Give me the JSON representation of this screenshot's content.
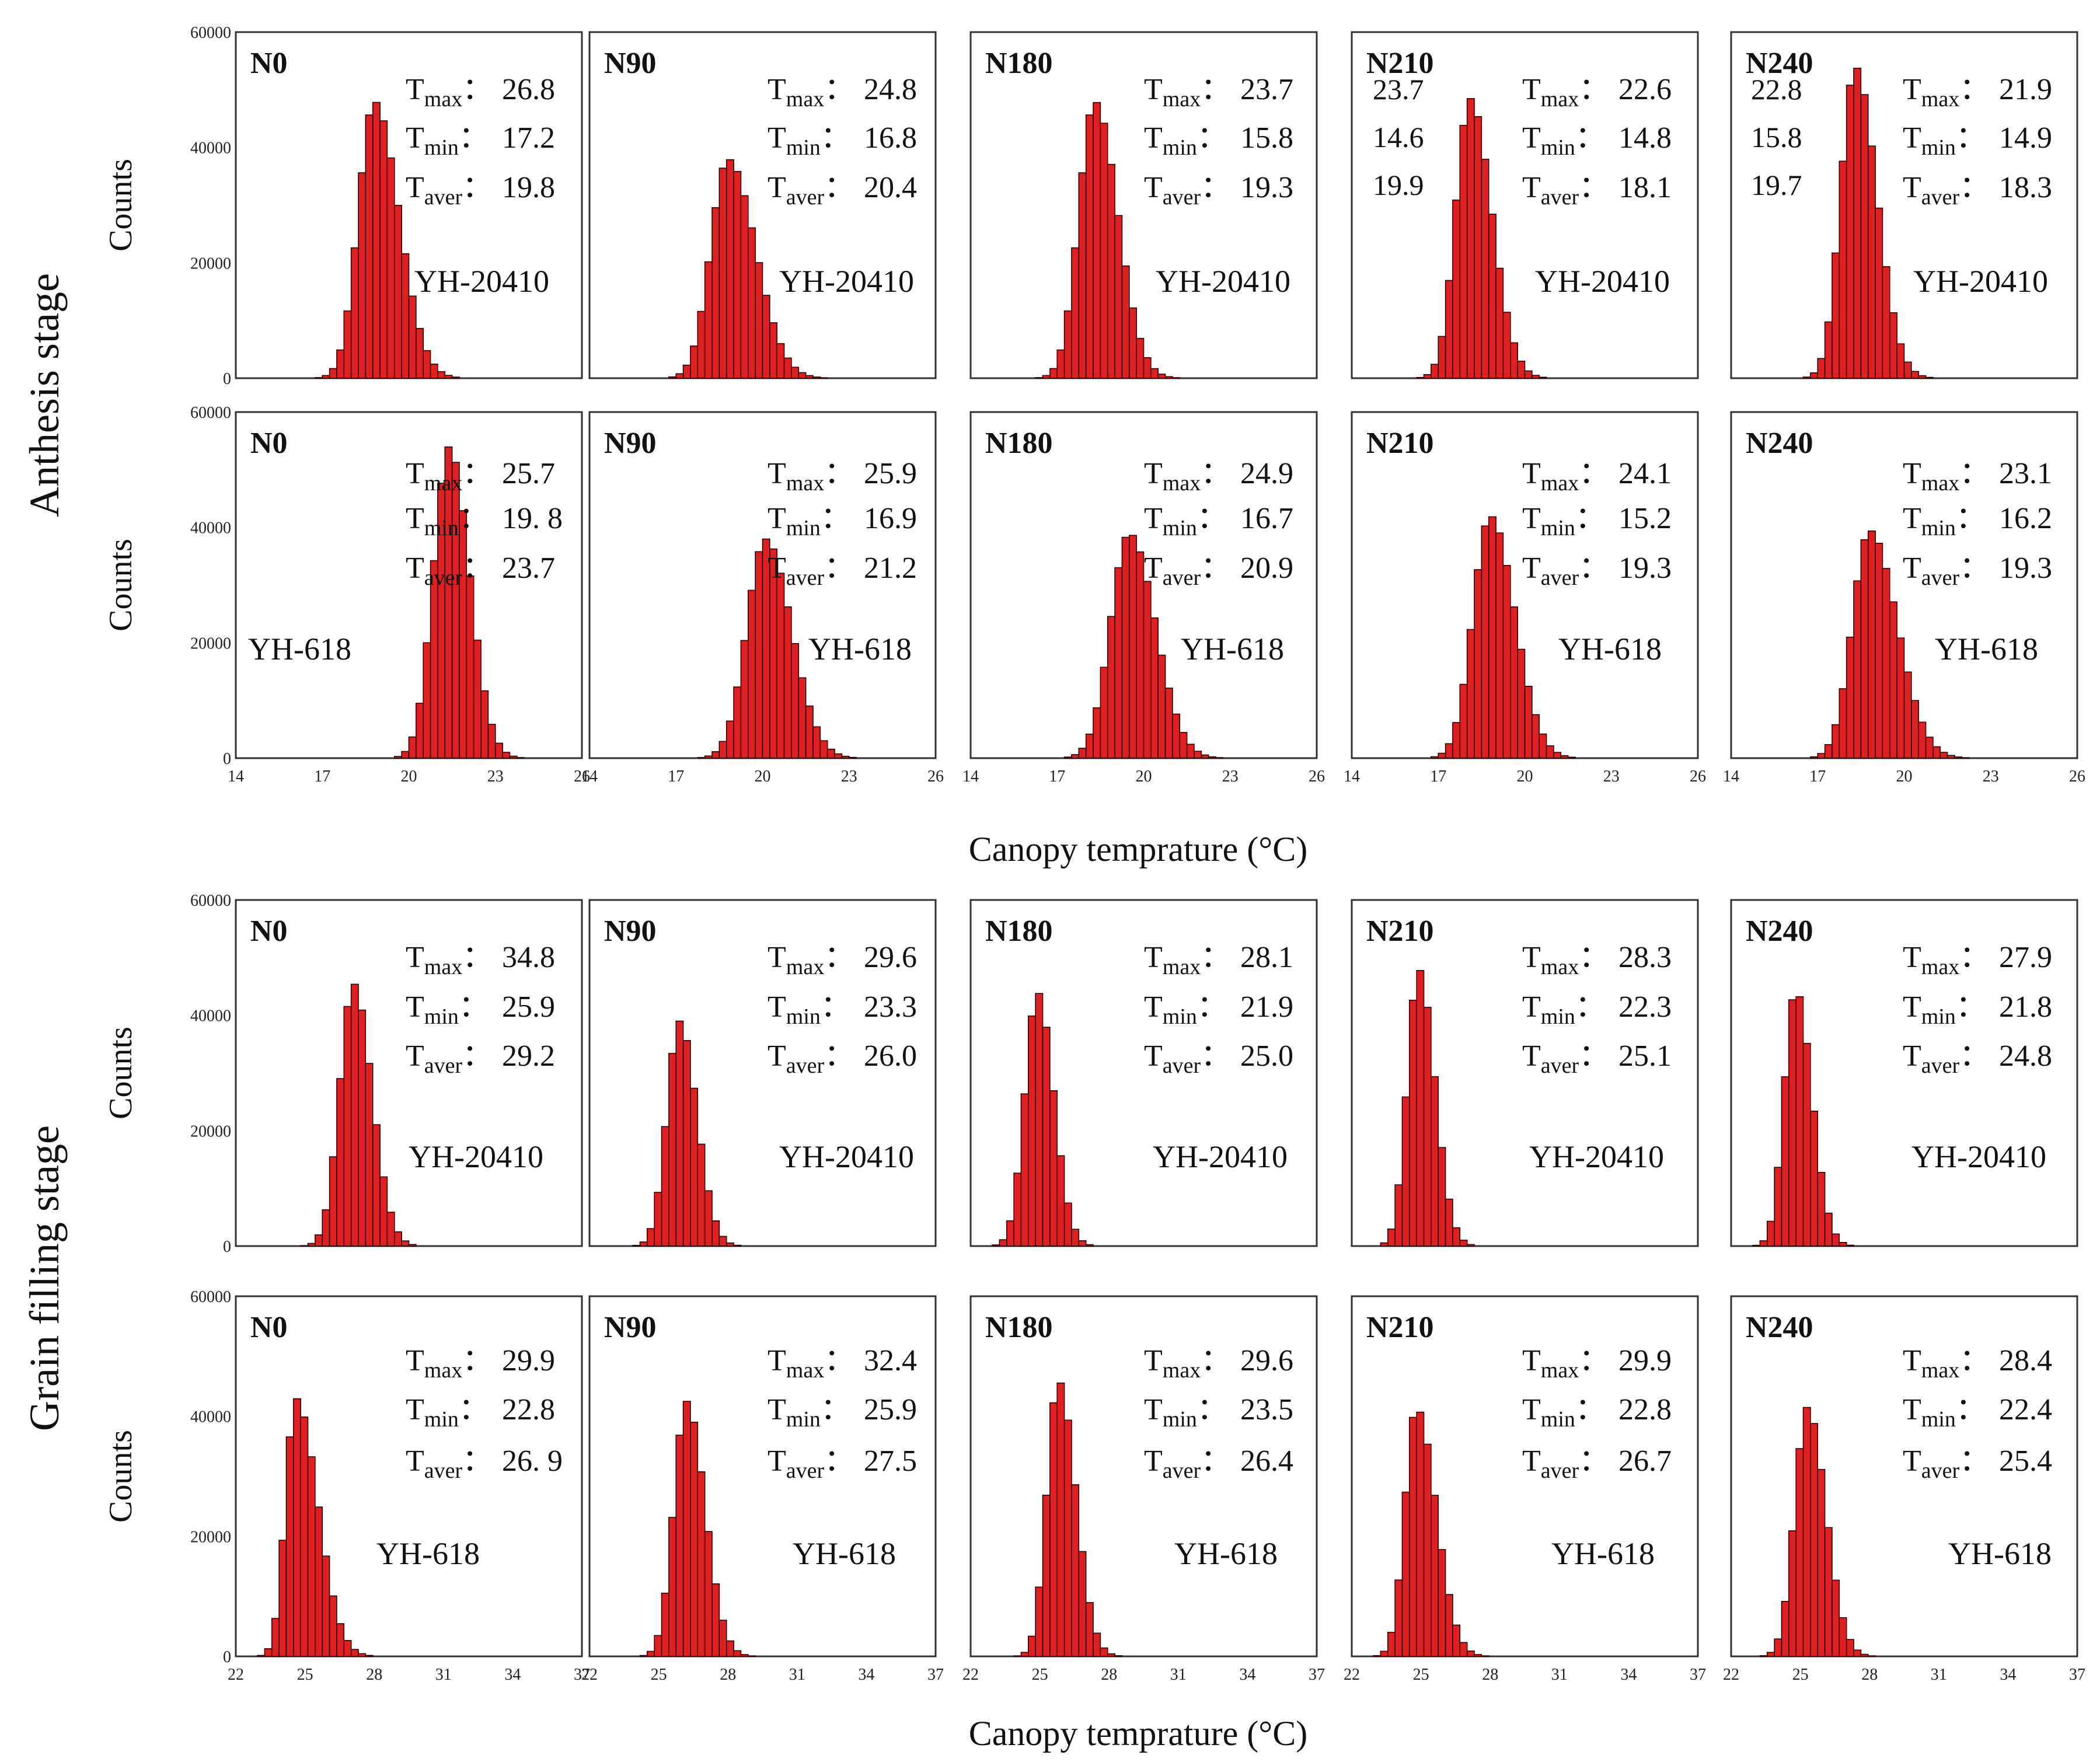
{
  "chart_data": {
    "type": "bar",
    "x_units_label": "Canopy temprature (°C)",
    "y_label": "Counts",
    "stages": [
      {
        "label": "Anthesis stage",
        "xlim": [
          14,
          26
        ],
        "x_ticks": [
          "14",
          "17",
          "20",
          "23",
          "26"
        ],
        "ylim": [
          0,
          60000
        ],
        "y_ticks": [
          "0",
          "20000",
          "40000",
          "60000"
        ],
        "x_axis_label": "Canopy temprature (°C)",
        "rows": [
          {
            "cultivar": "YH-20410",
            "panels": [
              {
                "treatment": "N0",
                "Tmax": "26.8",
                "Tmin": "17.2",
                "Taver": "19.8",
                "peak_x": 18.8,
                "peak_count": 48000,
                "sl": 0.55,
                "sr": 0.85
              },
              {
                "treatment": "N90",
                "Tmax": "24.8",
                "Tmin": "16.8",
                "Taver": "20.4",
                "peak_x": 18.8,
                "peak_count": 38000,
                "sl": 0.6,
                "sr": 0.95
              },
              {
                "treatment": "N180",
                "Tmax": "23.7",
                "Tmin": "15.8",
                "Taver": "19.3",
                "peak_x": 18.3,
                "peak_count": 48000,
                "sl": 0.55,
                "sr": 0.8
              },
              {
                "treatment": "N210",
                "Tmax": "22.6",
                "Tmin": "14.8",
                "Taver": "18.1",
                "peak_x": 18.1,
                "peak_count": 48500,
                "sl": 0.5,
                "sr": 0.75,
                "extra_values": [
                  "23.7",
                  "14.6",
                  "19.9"
                ]
              },
              {
                "treatment": "N240",
                "Tmax": "21.9",
                "Tmin": "14.9",
                "Taver": "18.3",
                "peak_x": 18.3,
                "peak_count": 54000,
                "sl": 0.5,
                "sr": 0.75,
                "extra_values": [
                  "22.8",
                  "15.8",
                  "19.7"
                ]
              }
            ]
          },
          {
            "cultivar": "YH-618",
            "panels": [
              {
                "treatment": "N0",
                "Tmax": "25.7",
                "Tmin": "19. 8",
                "Taver": "23.7",
                "peak_x": 21.4,
                "peak_count": 54000,
                "sl": 0.55,
                "sr": 0.7
              },
              {
                "treatment": "N90",
                "Tmax": "25.9",
                "Tmin": "16.9",
                "Taver": "21.2",
                "peak_x": 20.1,
                "peak_count": 38000,
                "sl": 0.65,
                "sr": 0.9
              },
              {
                "treatment": "N180",
                "Tmax": "24.9",
                "Tmin": "16.7",
                "Taver": "20.9",
                "peak_x": 19.5,
                "peak_count": 39000,
                "sl": 0.65,
                "sr": 0.9
              },
              {
                "treatment": "N210",
                "Tmax": "24.1",
                "Tmin": "15.2",
                "Taver": "19.3",
                "peak_x": 18.8,
                "peak_count": 42000,
                "sl": 0.6,
                "sr": 0.85
              },
              {
                "treatment": "N240",
                "Tmax": "23.1",
                "Tmin": "16.2",
                "Taver": "19.3",
                "peak_x": 18.8,
                "peak_count": 39500,
                "sl": 0.6,
                "sr": 0.95
              }
            ]
          }
        ]
      },
      {
        "label": "Grain filling stage",
        "xlim": [
          22,
          37
        ],
        "x_ticks": [
          "22",
          "25",
          "28",
          "31",
          "34",
          "37"
        ],
        "ylim": [
          0,
          60000
        ],
        "y_ticks": [
          "0",
          "20000",
          "40000",
          "60000"
        ],
        "x_axis_label": "Canopy temprature (°C)",
        "rows": [
          {
            "cultivar": "YH-20410",
            "panels": [
              {
                "treatment": "N0",
                "Tmax": "34.8",
                "Tmin": "25.9",
                "Taver": "29.2",
                "peak_x": 27.1,
                "peak_count": 45500,
                "sl": 0.6,
                "sr": 0.8
              },
              {
                "treatment": "N90",
                "Tmax": "29.6",
                "Tmin": "23.3",
                "Taver": "26.0",
                "peak_x": 25.9,
                "peak_count": 39000,
                "sl": 0.55,
                "sr": 0.75
              },
              {
                "treatment": "N180",
                "Tmax": "28.1",
                "Tmin": "21.9",
                "Taver": "25.0",
                "peak_x": 24.9,
                "peak_count": 44000,
                "sl": 0.55,
                "sr": 0.7
              },
              {
                "treatment": "N210",
                "Tmax": "28.3",
                "Tmin": "22.3",
                "Taver": "25.1",
                "peak_x": 24.9,
                "peak_count": 48000,
                "sl": 0.5,
                "sr": 0.7
              },
              {
                "treatment": "N240",
                "Tmax": "27.9",
                "Tmin": "21.8",
                "Taver": "24.8",
                "peak_x": 24.8,
                "peak_count": 44500,
                "sl": 0.5,
                "sr": 0.7
              }
            ]
          },
          {
            "cultivar": "YH-618",
            "panels": [
              {
                "treatment": "N0",
                "Tmax": "29.9",
                "Tmin": "22.8",
                "Taver": "26. 9",
                "peak_x": 24.6,
                "peak_count": 43000,
                "sl": 0.45,
                "sr": 0.95
              },
              {
                "treatment": "N90",
                "Tmax": "32.4",
                "Tmin": "25.9",
                "Taver": "27.5",
                "peak_x": 26.2,
                "peak_count": 42500,
                "sl": 0.55,
                "sr": 0.8
              },
              {
                "treatment": "N180",
                "Tmax": "29.6",
                "Tmin": "23.5",
                "Taver": "26.4",
                "peak_x": 25.8,
                "peak_count": 46000,
                "sl": 0.5,
                "sr": 0.75
              },
              {
                "treatment": "N210",
                "Tmax": "29.9",
                "Tmin": "22.8",
                "Taver": "26.7",
                "peak_x": 24.8,
                "peak_count": 41500,
                "sl": 0.5,
                "sr": 0.85
              },
              {
                "treatment": "N240",
                "Tmax": "28.4",
                "Tmin": "22.4",
                "Taver": "25.4",
                "peak_x": 25.3,
                "peak_count": 41500,
                "sl": 0.55,
                "sr": 0.8
              }
            ]
          }
        ]
      }
    ],
    "bar_color": "#e02020",
    "bar_edge_color": "#2a0000"
  }
}
